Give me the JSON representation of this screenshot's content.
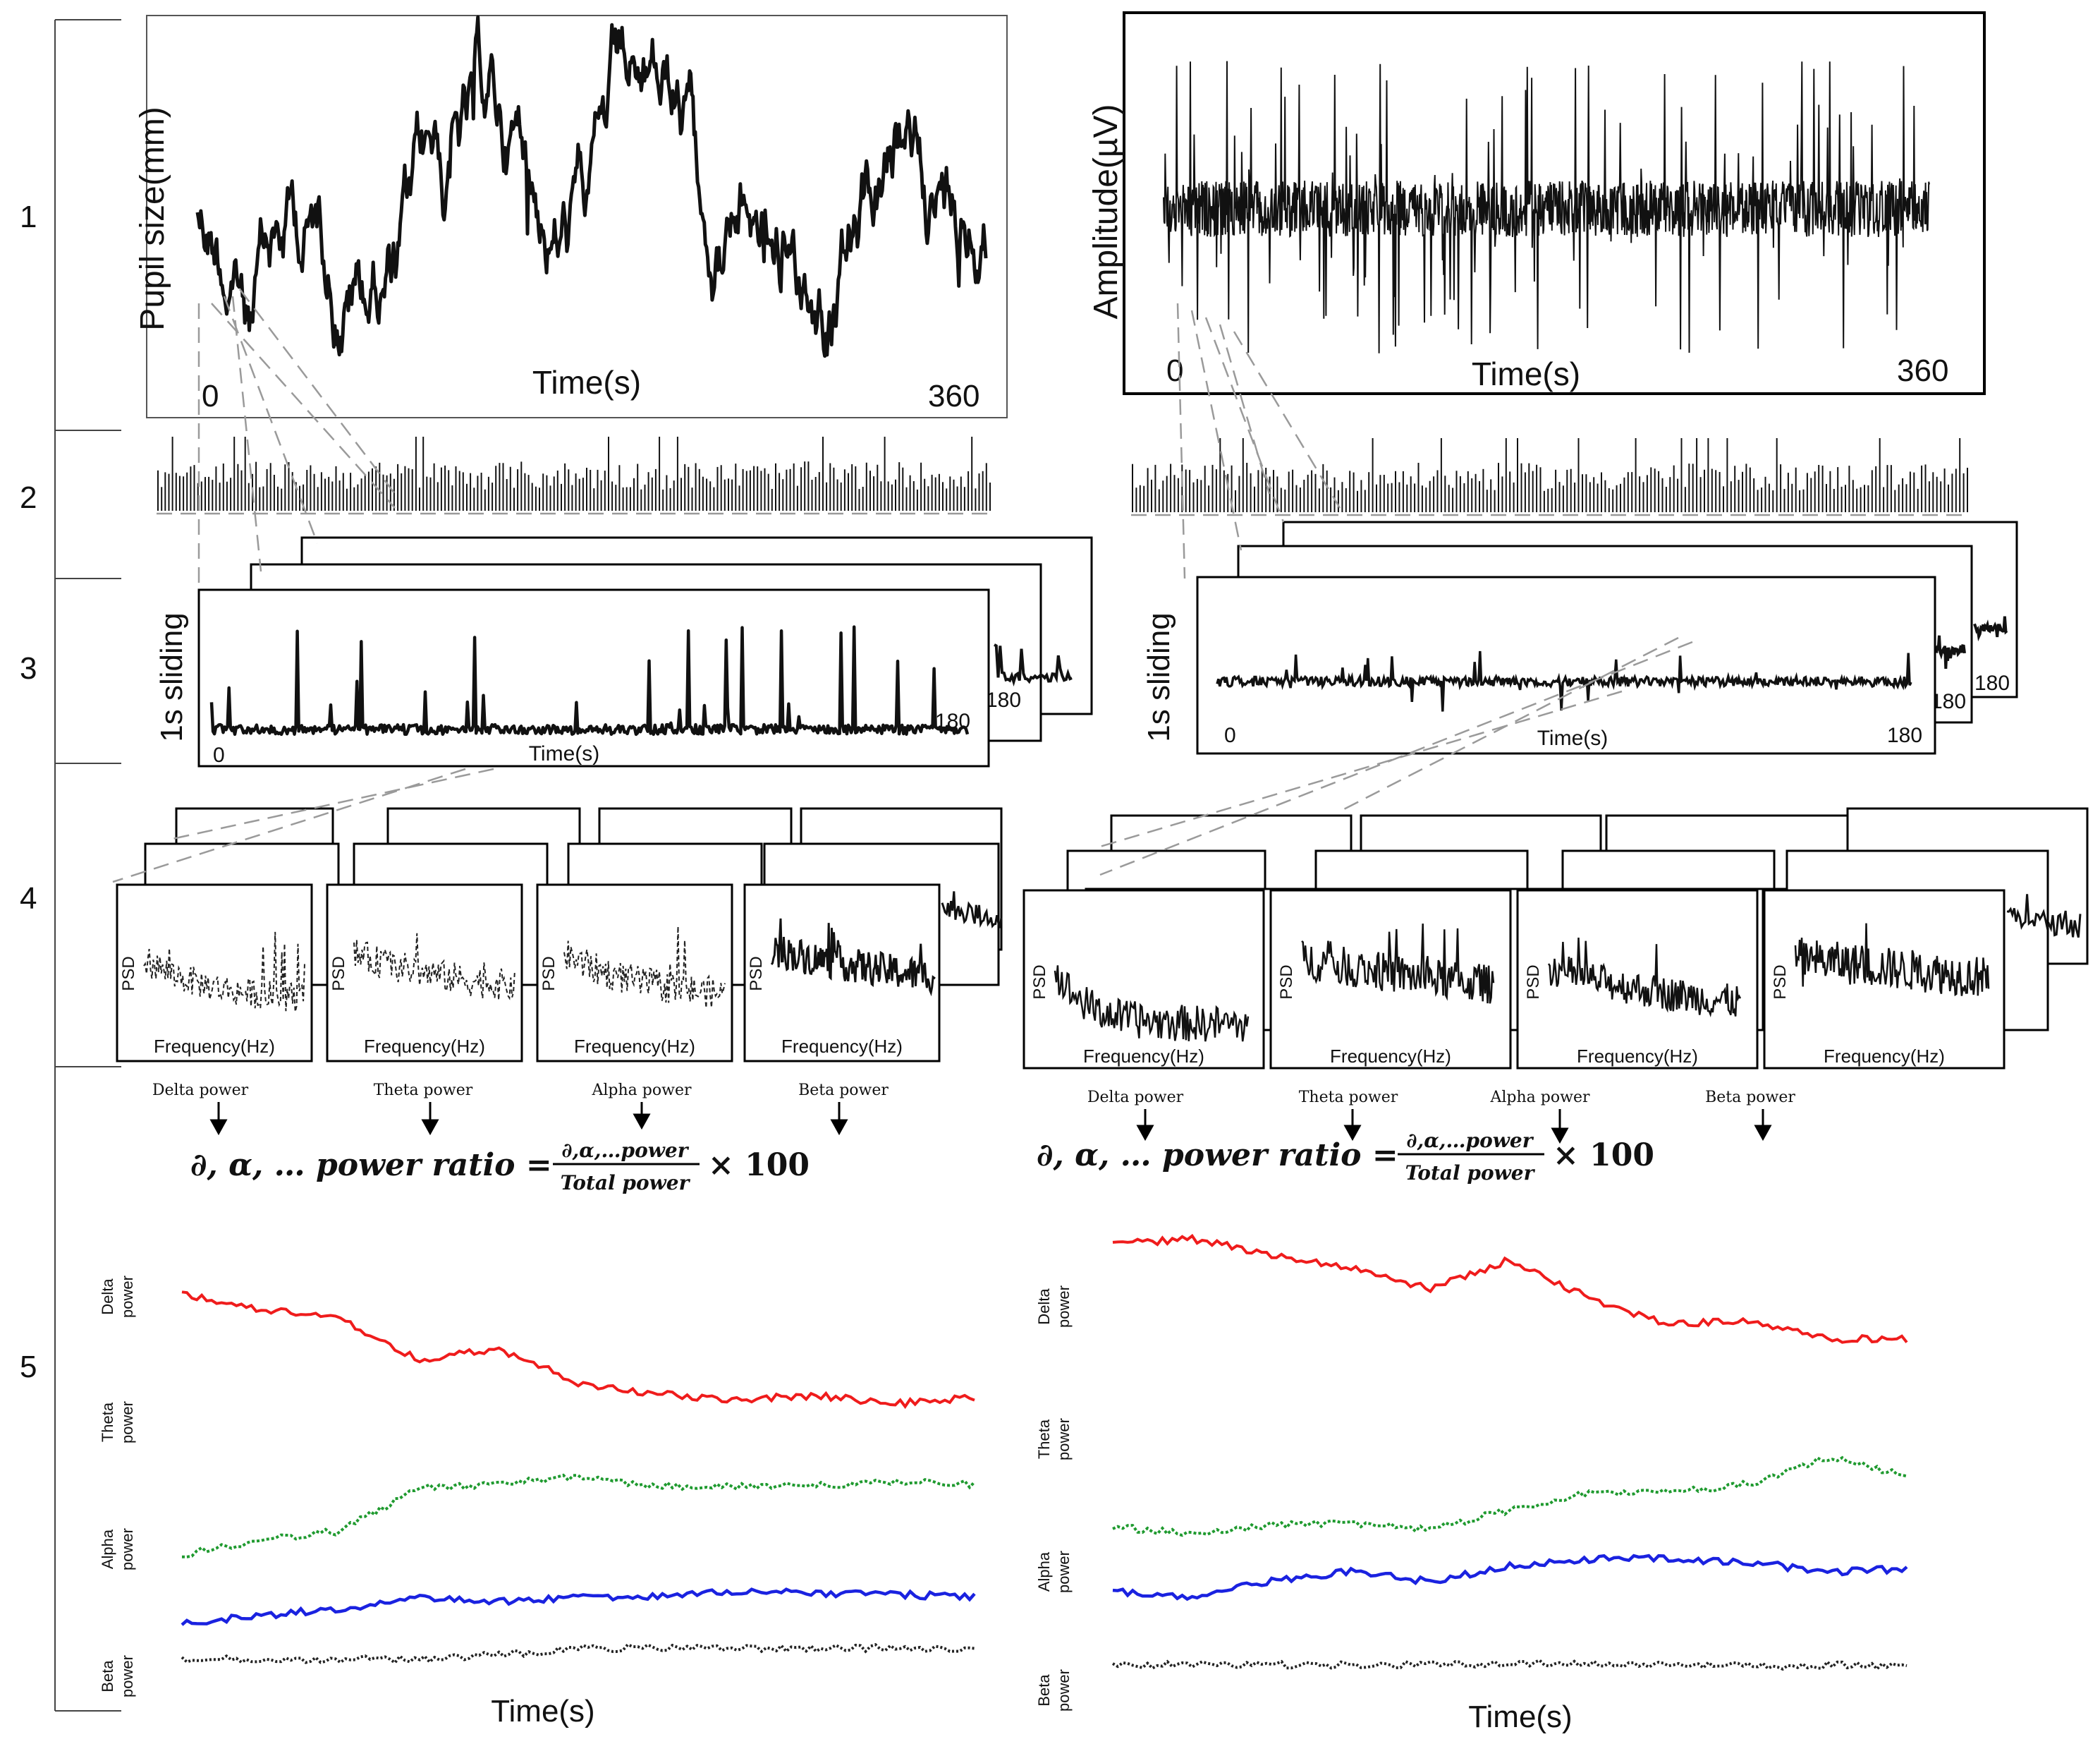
{
  "steps": [
    "1",
    "2",
    "3",
    "4",
    "5"
  ],
  "colors": {
    "delta": "#ef1c1c",
    "theta": "#1f9a2f",
    "alpha": "#1a22e0",
    "beta": "#222222",
    "signal": "#111111",
    "guide": "#9a9a9a"
  },
  "left": {
    "raw": {
      "ylabel": "Pupil size(mm)",
      "xlabel": "Time(s)",
      "x_start": "0",
      "x_end": "360"
    },
    "window": {
      "ylabel": "1s sliding",
      "xlabel": "Time(s)",
      "x_start": "0",
      "x_end": "180",
      "back_end": "180"
    },
    "psd": [
      {
        "ylabel": "PSD",
        "xlabel": "Frequency(Hz)"
      },
      {
        "ylabel": "PSD",
        "xlabel": "Frequency(Hz)"
      },
      {
        "ylabel": "PSD",
        "xlabel": "Frequency(Hz)"
      },
      {
        "ylabel": "PSD",
        "xlabel": "Frequency(Hz)"
      }
    ],
    "bands": [
      "Delta power",
      "Theta power",
      "Alpha power",
      "Beta power"
    ],
    "formula": {
      "lhs": "∂, α, … power ratio =",
      "num": "∂,α,…power",
      "den": "Total power",
      "tail": "× 100"
    },
    "power_labels": [
      [
        "Delta",
        "power"
      ],
      [
        "Theta",
        "power"
      ],
      [
        "Alpha",
        "power"
      ],
      [
        "Beta",
        "power"
      ]
    ],
    "xlabel": "Time(s)"
  },
  "right": {
    "raw": {
      "ylabel": "Amplitude(µV)",
      "xlabel": "Time(s)",
      "x_start": "0",
      "x_end": "360"
    },
    "window": {
      "ylabel": "1s sliding",
      "xlabel": "Time(s)",
      "x_start": "0",
      "x_end": "180",
      "back_end_1": "180",
      "back_end_2": "180"
    },
    "psd": [
      {
        "ylabel": "PSD",
        "xlabel": "Frequency(Hz)"
      },
      {
        "ylabel": "PSD",
        "xlabel": "Frequency(Hz)"
      },
      {
        "ylabel": "PSD",
        "xlabel": "Frequency(Hz)"
      },
      {
        "ylabel": "PSD",
        "xlabel": "Frequency(Hz)"
      }
    ],
    "bands": [
      "Delta power",
      "Theta power",
      "Alpha power",
      "Beta power"
    ],
    "formula": {
      "lhs": "∂, α, … power ratio =",
      "num": "∂,α,…power",
      "den": "Total power",
      "tail": "× 100"
    },
    "power_labels": [
      [
        "Delta",
        "power"
      ],
      [
        "Theta",
        "power"
      ],
      [
        "Alpha",
        "power"
      ],
      [
        "Beta",
        "power"
      ]
    ],
    "xlabel": "Time(s)"
  }
}
